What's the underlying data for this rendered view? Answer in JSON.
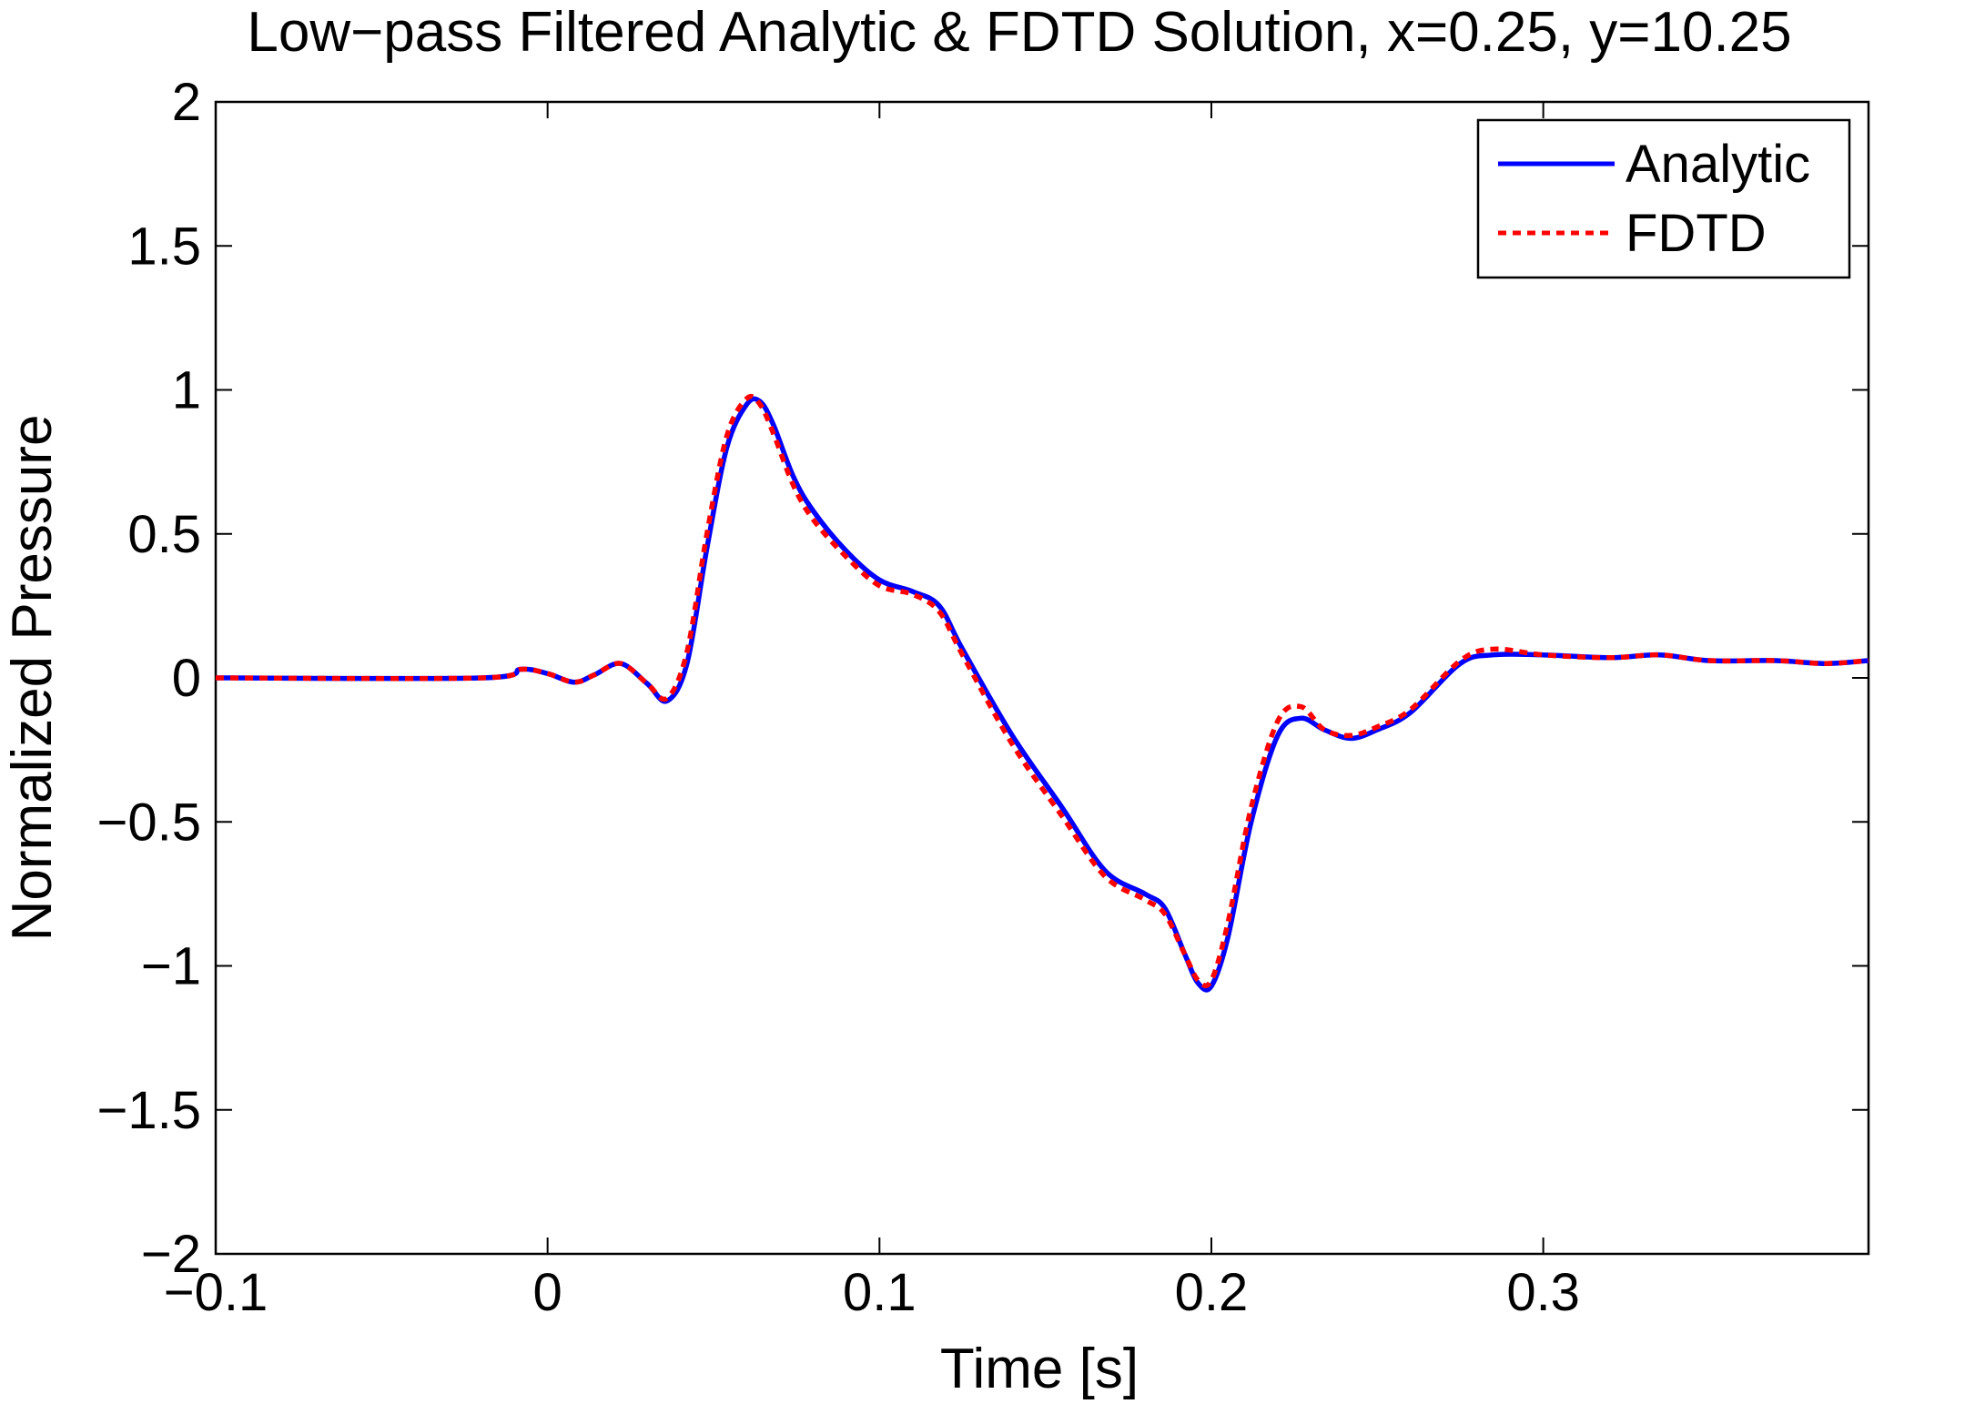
{
  "chart_data": {
    "type": "line",
    "title": "Low−pass Filtered Analytic & FDTD Solution, x=0.25, y=10.25",
    "xlabel": "Time [s]",
    "ylabel": "Normalized Pressure",
    "xlim": [
      -0.1,
      0.398
    ],
    "ylim": [
      -2,
      2
    ],
    "xticks": [
      -0.1,
      0,
      0.1,
      0.2,
      0.3
    ],
    "xtick_labels": [
      "−0.1",
      "0",
      "0.1",
      "0.2",
      "0.3"
    ],
    "yticks": [
      2,
      1.5,
      1,
      0.5,
      0,
      -0.5,
      -1,
      -1.5,
      -2
    ],
    "ytick_labels": [
      "2",
      "1.5",
      "1",
      "0.5",
      "0",
      "−0.5",
      "−1",
      "−1.5",
      "−2"
    ],
    "grid": false,
    "legend_position": "top-right",
    "series": [
      {
        "name": "Analytic",
        "color": "#0000ff",
        "style": "solid",
        "x": [
          -0.1,
          -0.02,
          -0.008,
          0.0,
          0.008,
          0.014,
          0.022,
          0.03,
          0.036,
          0.042,
          0.048,
          0.054,
          0.06,
          0.064,
          0.068,
          0.074,
          0.08,
          0.09,
          0.1,
          0.11,
          0.118,
          0.125,
          0.14,
          0.155,
          0.168,
          0.18,
          0.186,
          0.192,
          0.196,
          0.2,
          0.205,
          0.212,
          0.22,
          0.227,
          0.234,
          0.242,
          0.25,
          0.26,
          0.275,
          0.285,
          0.3,
          0.32,
          0.335,
          0.35,
          0.37,
          0.385,
          0.398
        ],
        "y": [
          0.0,
          0.0,
          0.03,
          0.015,
          -0.015,
          0.01,
          0.05,
          -0.02,
          -0.08,
          0.05,
          0.45,
          0.8,
          0.95,
          0.96,
          0.88,
          0.7,
          0.58,
          0.44,
          0.34,
          0.3,
          0.25,
          0.1,
          -0.2,
          -0.45,
          -0.67,
          -0.75,
          -0.8,
          -0.96,
          -1.06,
          -1.07,
          -0.9,
          -0.5,
          -0.2,
          -0.14,
          -0.18,
          -0.21,
          -0.18,
          -0.12,
          0.05,
          0.08,
          0.08,
          0.07,
          0.08,
          0.06,
          0.06,
          0.05,
          0.06
        ]
      },
      {
        "name": "FDTD",
        "color": "#ff0000",
        "style": "dotted",
        "x": [
          -0.1,
          -0.02,
          -0.008,
          0.0,
          0.008,
          0.014,
          0.022,
          0.03,
          0.036,
          0.042,
          0.048,
          0.054,
          0.06,
          0.064,
          0.068,
          0.074,
          0.08,
          0.09,
          0.1,
          0.11,
          0.118,
          0.125,
          0.14,
          0.155,
          0.168,
          0.18,
          0.186,
          0.192,
          0.196,
          0.2,
          0.205,
          0.212,
          0.22,
          0.227,
          0.234,
          0.242,
          0.25,
          0.26,
          0.275,
          0.285,
          0.3,
          0.32,
          0.335,
          0.35,
          0.37,
          0.385,
          0.398
        ],
        "y": [
          0.0,
          0.0,
          0.03,
          0.015,
          -0.015,
          0.01,
          0.05,
          -0.02,
          -0.07,
          0.09,
          0.5,
          0.84,
          0.97,
          0.95,
          0.85,
          0.67,
          0.55,
          0.42,
          0.32,
          0.29,
          0.23,
          0.08,
          -0.23,
          -0.48,
          -0.69,
          -0.77,
          -0.82,
          -0.96,
          -1.05,
          -1.05,
          -0.85,
          -0.45,
          -0.15,
          -0.1,
          -0.18,
          -0.2,
          -0.17,
          -0.11,
          0.06,
          0.1,
          0.08,
          0.07,
          0.08,
          0.06,
          0.06,
          0.05,
          0.06
        ]
      }
    ]
  }
}
